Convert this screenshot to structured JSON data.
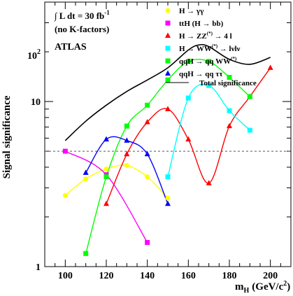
{
  "chart_data": {
    "type": "line",
    "xlabel": "m",
    "xlabel_sub": "H",
    "xlabel_unit": "(GeV/c",
    "xlabel_unit_sup": "2",
    "xlabel_unit_close": ")",
    "ylabel": "Signal significance",
    "xlim": [
      90,
      210
    ],
    "ylim": [
      1,
      40
    ],
    "y_scale": "log",
    "x_ticks": [
      100,
      120,
      140,
      160,
      180,
      200
    ],
    "y_ticks": [
      {
        "value": 1,
        "base": "1",
        "sup": ""
      },
      {
        "value": 10,
        "base": "10",
        "sup": ""
      },
      {
        "value": 100,
        "base": "10",
        "sup": "2"
      }
    ],
    "reference_line": {
      "y": 5,
      "style": "dashed"
    },
    "annotations": {
      "lumi_pre": "∫ L dt = 30 fb",
      "lumi_sup": "-1",
      "kfactor": "(no K-factors)",
      "experiment": "ATLAS"
    },
    "legend_position": "top-right",
    "series": [
      {
        "key": "gg",
        "color": "#ffff00",
        "marker": "circle",
        "legend": {
          "parts": [
            "H  →  γγ"
          ]
        },
        "x": [
          100,
          110,
          120,
          130,
          140,
          150
        ],
        "y": [
          2.7,
          3.4,
          3.9,
          4.1,
          3.5,
          2.6
        ]
      },
      {
        "key": "tth",
        "color": "#ff00ff",
        "marker": "square",
        "legend": {
          "parts": [
            "ttH (H  →  bb)"
          ]
        },
        "x": [
          100,
          120,
          140
        ],
        "y": [
          5.0,
          3.6,
          1.4
        ]
      },
      {
        "key": "zz",
        "color": "#ff0000",
        "marker": "triangle",
        "legend": {
          "parts": [
            "H  →  ZZ",
            "(*)",
            "  →  4 l"
          ]
        },
        "x": [
          120,
          130,
          140,
          150,
          160,
          170,
          180,
          190,
          200
        ],
        "y": [
          2.4,
          4.8,
          7.5,
          9.0,
          5.9,
          3.2,
          7.1,
          10.7,
          16.0
        ]
      },
      {
        "key": "ww",
        "color": "#00ffff",
        "marker": "square",
        "legend": {
          "parts": [
            "H  →  WW",
            "(*)",
            "  →  lνlν"
          ]
        },
        "x": [
          150,
          160,
          170,
          180,
          190
        ],
        "y": [
          3.5,
          10.5,
          12.5,
          8.8,
          6.7
        ]
      },
      {
        "key": "qqww",
        "color": "#00ff00",
        "marker": "square",
        "legend": {
          "parts": [
            "qqH  →  qq WW",
            "(*)",
            ""
          ]
        },
        "x": [
          110,
          120,
          130,
          140,
          150,
          160,
          170,
          180,
          190
        ],
        "y": [
          1.2,
          3.5,
          7.1,
          9.5,
          13.5,
          17.5,
          17.5,
          14.0,
          10.7
        ]
      },
      {
        "key": "qqtt",
        "color": "#0000ff",
        "marker": "triangle",
        "legend": {
          "parts": [
            "qqH  →  qq ττ"
          ]
        },
        "x": [
          110,
          120,
          130,
          140,
          150
        ],
        "y": [
          3.7,
          5.9,
          5.8,
          4.8,
          2.4
        ]
      },
      {
        "key": "total",
        "color": "#000000",
        "marker": "none",
        "legend": {
          "parts": [
            "Total significance"
          ]
        },
        "x": [
          100,
          110,
          120,
          130,
          140,
          150,
          160,
          165,
          170,
          180,
          190,
          200
        ],
        "y": [
          5.8,
          7.6,
          9.5,
          11.5,
          13.5,
          16.0,
          20.5,
          22.0,
          21.5,
          18.0,
          16.8,
          18.5
        ]
      }
    ]
  }
}
